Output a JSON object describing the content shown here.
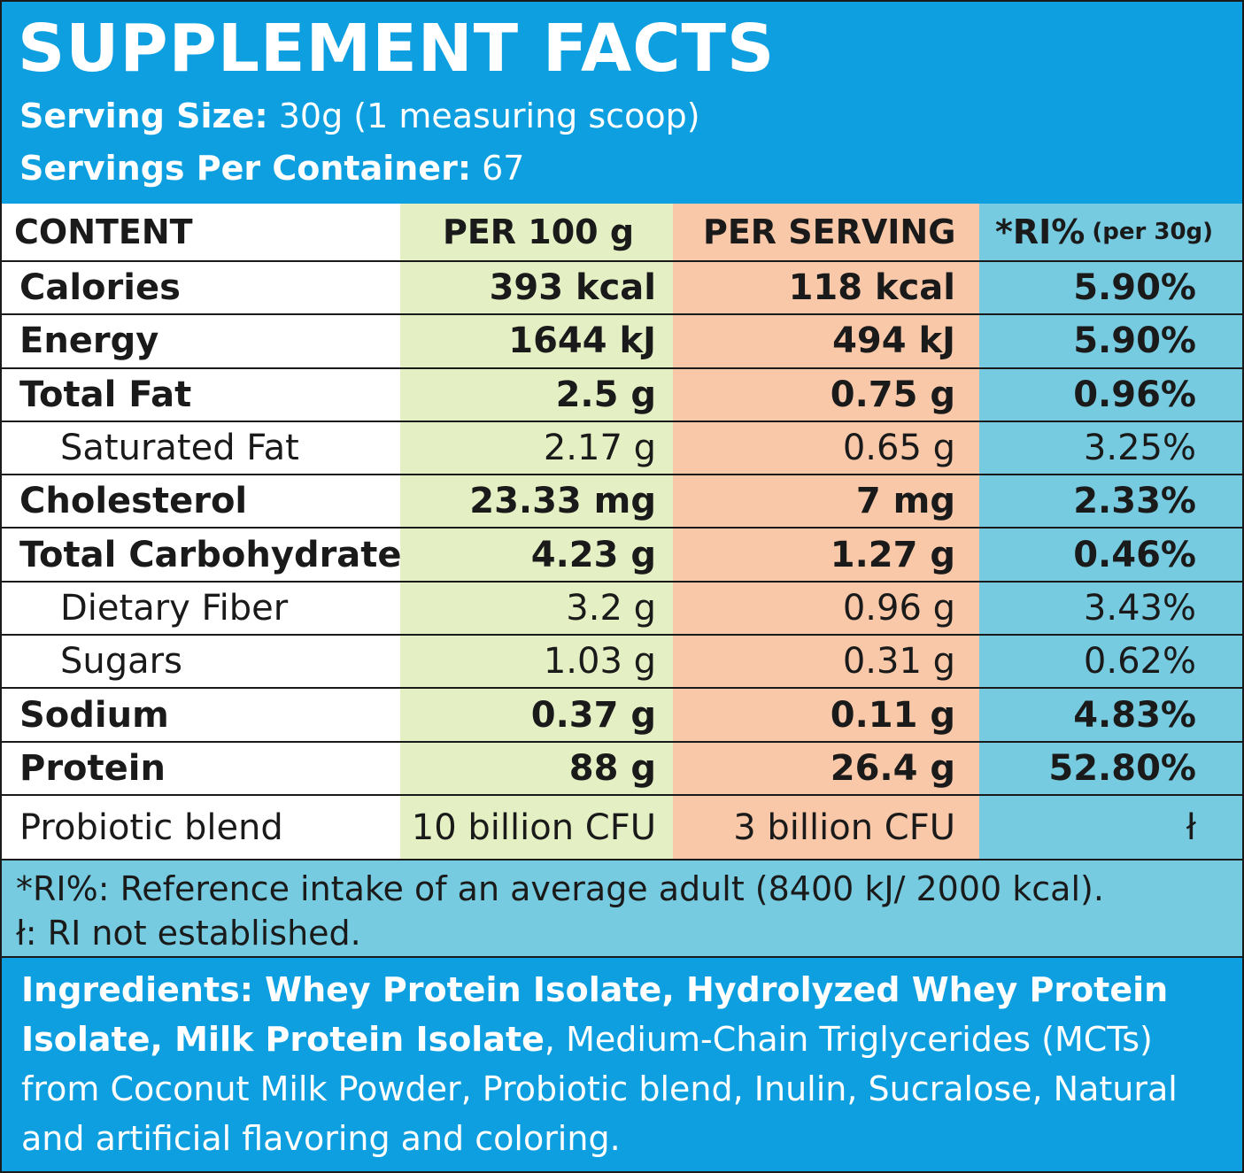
{
  "header": {
    "title": "SUPPLEMENT FACTS",
    "serving_size_label": "Serving Size:",
    "serving_size_value": " 30g (1 measuring scoop)",
    "servings_label": "Servings Per Container:",
    "servings_value": " 67"
  },
  "columns": {
    "content": "CONTENT",
    "per100": "PER 100 g",
    "per_serving": "PER SERVING",
    "ri": "*RI%",
    "ri_note": "(per 30g)"
  },
  "rows": [
    {
      "label": "Calories",
      "per100": "393 kcal",
      "per_serving": "118 kcal",
      "ri": "5.90%",
      "bold": true
    },
    {
      "label": "Energy",
      "per100": "1644 kJ",
      "per_serving": "494 kJ",
      "ri": "5.90%",
      "bold": true
    },
    {
      "label": "Total Fat",
      "per100": "2.5 g",
      "per_serving": "0.75 g",
      "ri": "0.96%",
      "bold": true
    },
    {
      "label": "Saturated Fat",
      "per100": "2.17 g",
      "per_serving": "0.65 g",
      "ri": "3.25%",
      "bold": false
    },
    {
      "label": "Cholesterol",
      "per100": "23.33 mg",
      "per_serving": "7 mg",
      "ri": "2.33%",
      "bold": true
    },
    {
      "label": "Total Carbohydrate",
      "per100": "4.23 g",
      "per_serving": "1.27 g",
      "ri": "0.46%",
      "bold": true
    },
    {
      "label": "Dietary Fiber",
      "per100": "3.2 g",
      "per_serving": "0.96 g",
      "ri": "3.43%",
      "bold": false
    },
    {
      "label": "Sugars",
      "per100": "1.03 g",
      "per_serving": "0.31 g",
      "ri": "0.62%",
      "bold": false
    },
    {
      "label": "Sodium",
      "per100": "0.37 g",
      "per_serving": "0.11 g",
      "ri": "4.83%",
      "bold": true
    },
    {
      "label": "Protein",
      "per100": "88 g",
      "per_serving": "26.4 g",
      "ri": "52.80%",
      "bold": true
    },
    {
      "label": "Probiotic blend",
      "per100": "10 billion CFU",
      "per_serving": "3 billion CFU",
      "ri": "ł",
      "bold": false
    }
  ],
  "footnotes": {
    "ri_definition": "*RI%: Reference intake of an average adult (8400 kJ/ 2000 kcal).",
    "not_established": "ł: RI not established."
  },
  "ingredients": {
    "bold_text": "Ingredients: Whey Protein Isolate, Hydrolyzed Whey Protein Isolate, Milk Protein Isolate",
    "regular_text": ", Medium-Chain Triglycerides (MCTs) from Coconut Milk Powder, Probiotic blend, Inulin, Sucralose, Natural and artificial flavoring and coloring."
  },
  "colors": {
    "header_blue": "#0d9fe0",
    "per100_green": "#e4f0c4",
    "per_serving_peach": "#f8c8a8",
    "ri_light_blue": "#76cbe0"
  }
}
